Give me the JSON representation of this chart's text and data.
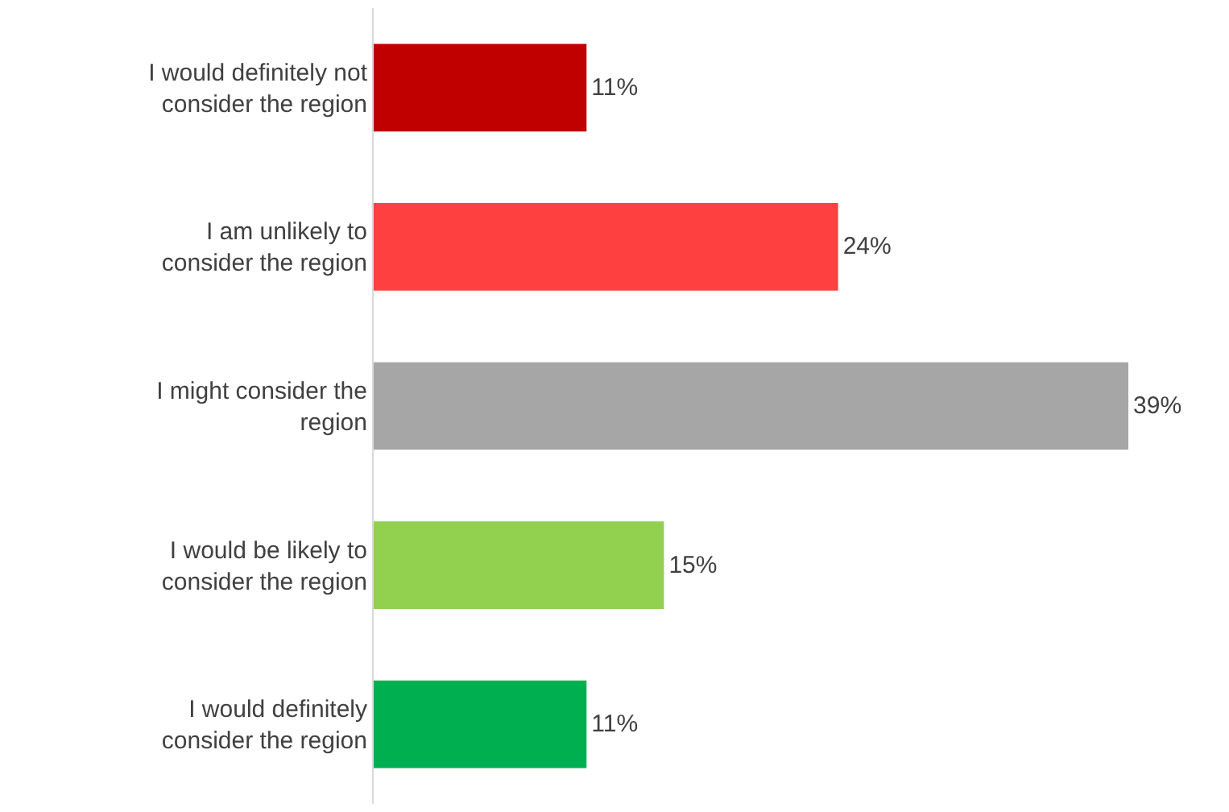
{
  "chart_data": {
    "type": "bar",
    "orientation": "horizontal",
    "categories": [
      "I would definitely not consider the region",
      "I am unlikely to consider the region",
      "I might consider the region",
      "I would be likely to consider the region",
      "I would definitely consider the region"
    ],
    "values": [
      11,
      24,
      39,
      15,
      11
    ],
    "colors": [
      "#c00000",
      "#ff4040",
      "#a6a6a6",
      "#92d050",
      "#00b050"
    ],
    "value_labels": [
      "11%",
      "24%",
      "39%",
      "15%",
      "11%"
    ]
  }
}
